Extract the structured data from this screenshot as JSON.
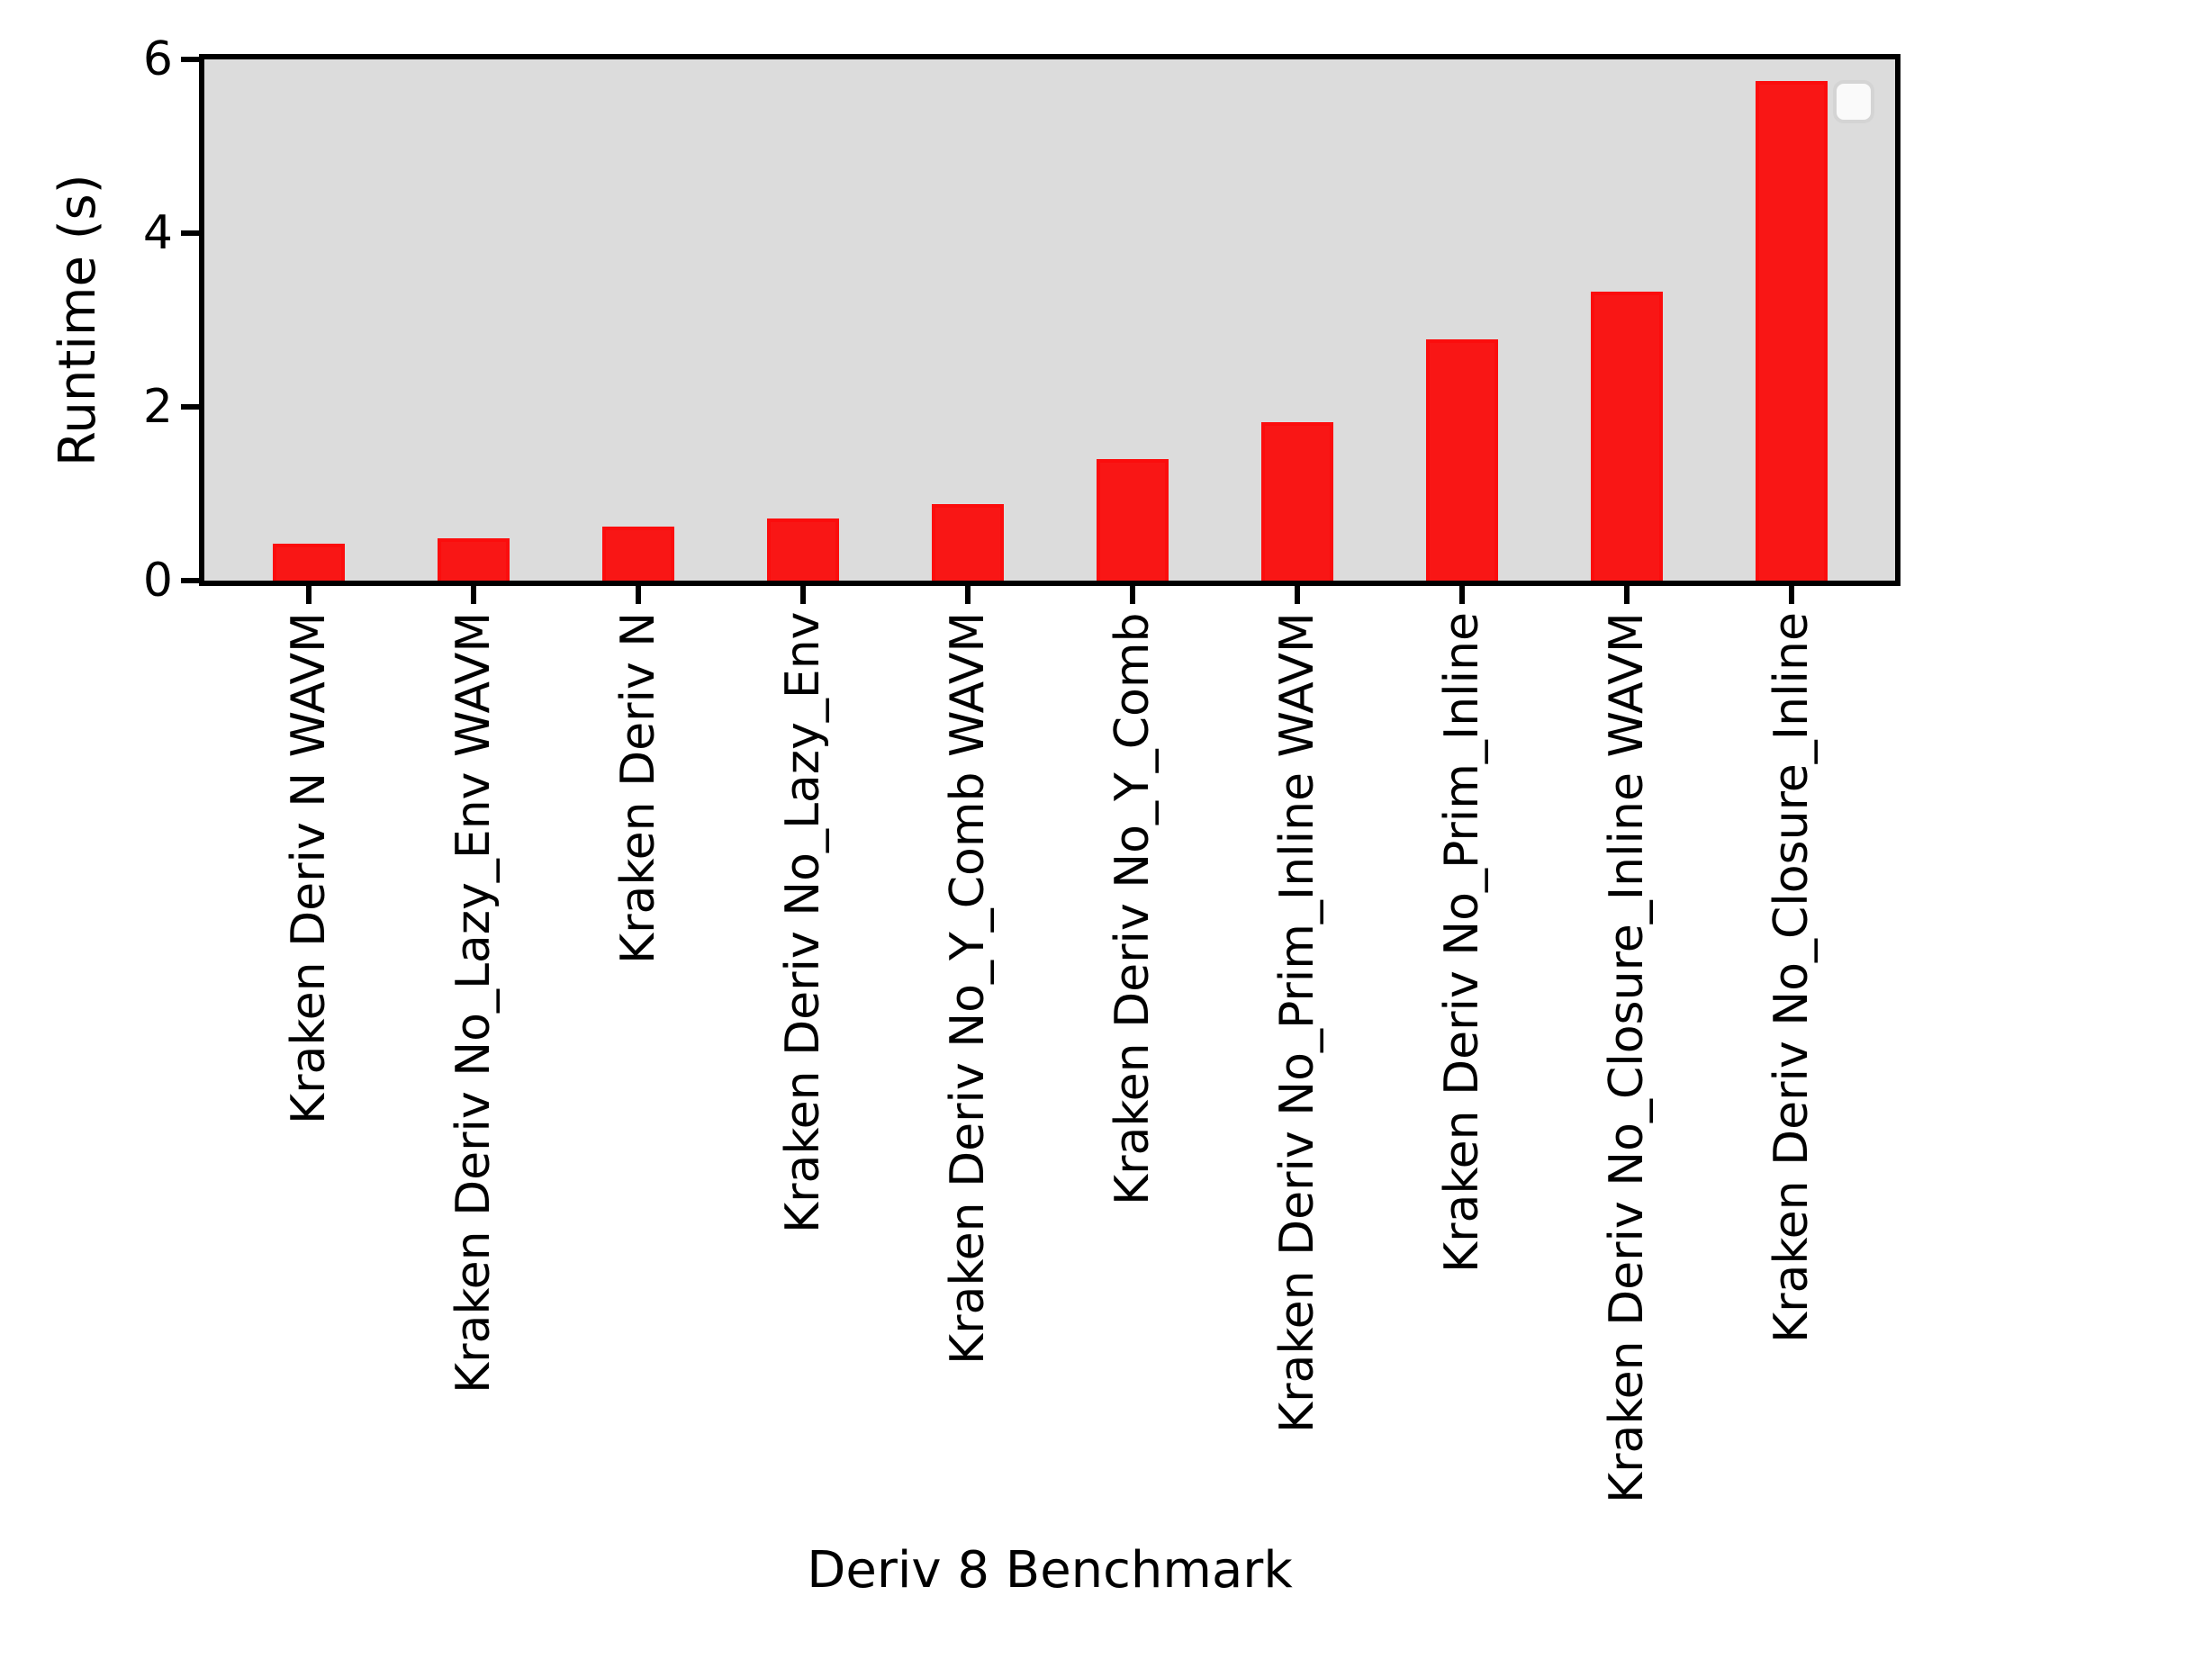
{
  "chart_data": {
    "type": "bar",
    "title": "",
    "xlabel": "Deriv 8 Benchmark",
    "ylabel": "Runtime (s)",
    "categories": [
      "Kraken Deriv N WAVM",
      "Kraken Deriv No_Lazy_Env WAVM",
      "Kraken Deriv N",
      "Kraken Deriv No_Lazy_Env",
      "Kraken Deriv No_Y_Comb WAVM",
      "Kraken Deriv No_Y_Comb",
      "Kraken Deriv No_Prim_Inline WAVM",
      "Kraken Deriv No_Prim_Inline",
      "Kraken Deriv No_Closure_Inline WAVM",
      "Kraken Deriv No_Closure_Inline"
    ],
    "values": [
      0.43,
      0.49,
      0.62,
      0.72,
      0.88,
      1.4,
      1.82,
      2.78,
      3.33,
      5.75
    ],
    "ylim": [
      0,
      6
    ],
    "yticks": [
      "0",
      "2",
      "4",
      "6"
    ],
    "grid": false,
    "legend_position": "upper right",
    "legend_entries": [],
    "colors": {
      "bar_fill": "#f91615",
      "bar_edge": "#fb0d0d",
      "plot_background": "#dcdcdc",
      "axis": "#000000",
      "text": "#000000",
      "legend_fill": "#fafafa",
      "legend_border": "#d4d4d4"
    }
  }
}
